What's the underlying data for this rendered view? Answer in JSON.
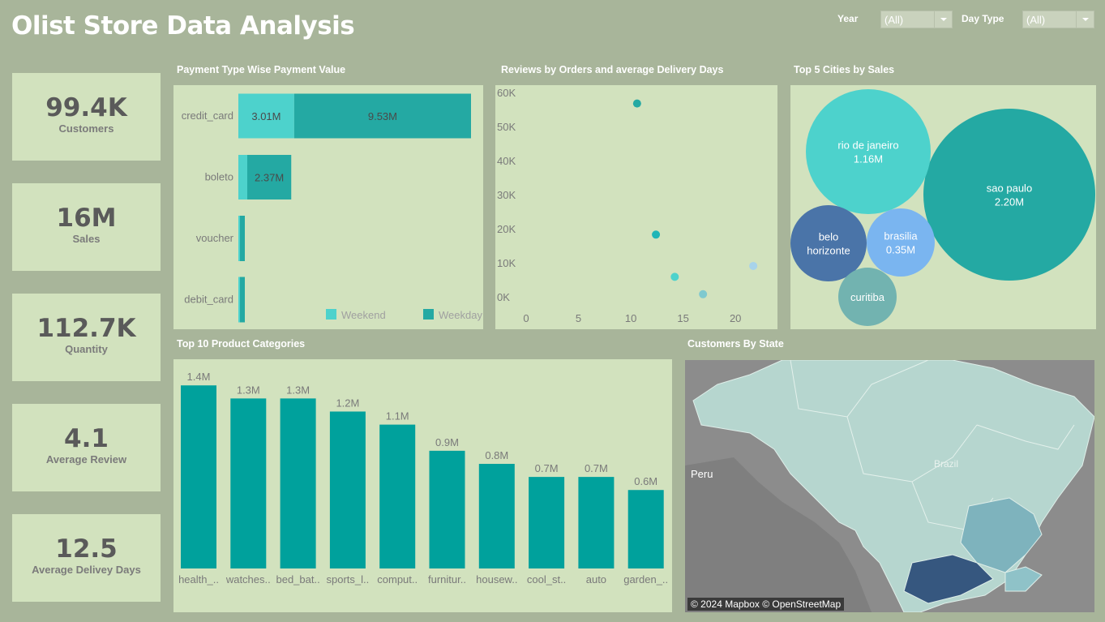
{
  "header": {
    "title": "Olist Store Data Analysis"
  },
  "filters": [
    {
      "label": "Year",
      "value": "(All)"
    },
    {
      "label": "Day Type",
      "value": "(All)"
    }
  ],
  "kpis": [
    {
      "value": "99.4K",
      "label": "Customers"
    },
    {
      "value": "16M",
      "label": "Sales"
    },
    {
      "value": "112.7K",
      "label": "Quantity"
    },
    {
      "value": "4.1",
      "label": "Average Review"
    },
    {
      "value": "12.5",
      "label": "Average Delivey Days"
    }
  ],
  "sections": {
    "payment": "Payment Type Wise Payment Value",
    "reviews": "Reviews by Orders and average Delivery Days",
    "cities": "Top 5 Cities by Sales",
    "products": "Top 10 Product Categories",
    "states": "Customers By State"
  },
  "colors": {
    "weekend": "#4dd2cc",
    "weekday": "#24a9a3",
    "bar": "#00a19c",
    "panel": "#d2e2be",
    "background": "#a8b59a"
  },
  "chart_data": [
    {
      "id": "payment",
      "type": "bar",
      "orientation": "horizontal",
      "stacked": true,
      "categories": [
        "credit_card",
        "boleto",
        "voucher",
        "debit_card"
      ],
      "series": [
        {
          "name": "Weekend",
          "values": [
            3.01,
            0.1,
            0.03,
            0.01
          ],
          "labels": [
            "3.01M",
            "",
            "",
            ""
          ]
        },
        {
          "name": "Weekday",
          "values": [
            9.53,
            2.37,
            0.05,
            0.03
          ],
          "labels": [
            "9.53M",
            "2.37M",
            "",
            ""
          ]
        }
      ],
      "legend": "bottom-right",
      "xlim": [
        0,
        12.54
      ]
    },
    {
      "id": "reviews",
      "type": "scatter",
      "x_ticks": [
        "0",
        "5",
        "10",
        "15",
        "20"
      ],
      "y_ticks": [
        "0K",
        "10K",
        "20K",
        "30K",
        "40K",
        "50K",
        "60K"
      ],
      "xlim": [
        0,
        22
      ],
      "ylim": [
        0,
        60
      ],
      "points": [
        {
          "x": 10.6,
          "y": 57,
          "color": "#24a9a3"
        },
        {
          "x": 12.4,
          "y": 18.5,
          "color": "#1fb5b7"
        },
        {
          "x": 14.2,
          "y": 6.1,
          "color": "#4dd2cc"
        },
        {
          "x": 16.9,
          "y": 1.0,
          "color": "#7fc9cf"
        },
        {
          "x": 21.7,
          "y": 9.3,
          "color": "#a8d3ea"
        }
      ]
    },
    {
      "id": "cities",
      "type": "bubble",
      "bubbles": [
        {
          "name": "sao paulo",
          "value_label": "2.20M",
          "value": 2.2,
          "color": "#24a9a3"
        },
        {
          "name": "rio de janeiro",
          "value_label": "1.16M",
          "value": 1.16,
          "color": "#4dd2cc"
        },
        {
          "name": "belo horizonte",
          "value_label": "",
          "value": 0.4,
          "color": "#4a74a8"
        },
        {
          "name": "brasilia",
          "value_label": "0.35M",
          "value": 0.35,
          "color": "#7ab5f0"
        },
        {
          "name": "curitiba",
          "value_label": "",
          "value": 0.25,
          "color": "#72b3b0"
        }
      ]
    },
    {
      "id": "products",
      "type": "bar",
      "categories": [
        "health_..",
        "watches..",
        "bed_bat..",
        "sports_l..",
        "comput..",
        "furnitur..",
        "housew..",
        "cool_st..",
        "auto",
        "garden_.."
      ],
      "values": [
        1.4,
        1.3,
        1.3,
        1.2,
        1.1,
        0.9,
        0.8,
        0.7,
        0.7,
        0.6
      ],
      "labels": [
        "1.4M",
        "1.3M",
        "1.3M",
        "1.2M",
        "1.1M",
        "0.9M",
        "0.8M",
        "0.7M",
        "0.7M",
        "0.6M"
      ],
      "ylim": [
        0,
        1.42
      ]
    }
  ],
  "map": {
    "labels": [
      "Peru",
      "Brazil"
    ],
    "credit": "© 2024 Mapbox © OpenStreetMap"
  }
}
